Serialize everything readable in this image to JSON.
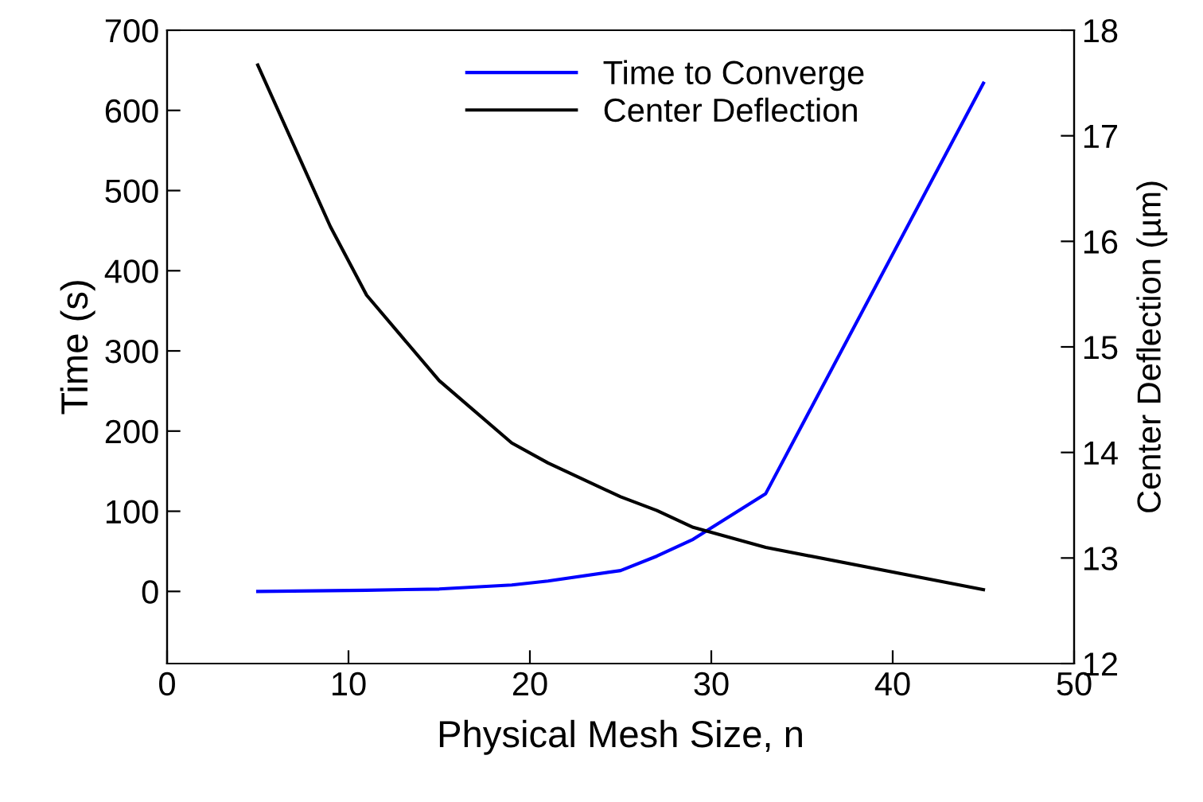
{
  "chart_data": {
    "type": "line",
    "xlabel": "Physical Mesh Size, n",
    "ylabel": "Time (s)",
    "y2label": "Center Deflection (µm)",
    "xlim": [
      0,
      50
    ],
    "xticks": [
      0,
      10,
      20,
      30,
      40,
      50
    ],
    "ylim": [
      -90,
      700
    ],
    "yticks": [
      0,
      100,
      200,
      300,
      400,
      500,
      600,
      700
    ],
    "y2lim": [
      12,
      18
    ],
    "y2ticks": [
      12,
      13,
      14,
      15,
      16,
      17,
      18
    ],
    "legend": "top",
    "grid": false,
    "marker": "none",
    "line_style": "solid",
    "series": [
      {
        "name": "Time to Converge",
        "color": "#0000ff",
        "x": [
          5,
          9,
          11,
          15,
          19,
          21,
          25,
          27,
          29,
          33,
          45
        ],
        "values": [
          0,
          1,
          1.5,
          3,
          8,
          13,
          26,
          44,
          65,
          122,
          634
        ]
      },
      {
        "name": "Center Deflection",
        "color": "#000000",
        "axis": "y2",
        "x": [
          5,
          9,
          11,
          15,
          19,
          21,
          25,
          27,
          29,
          33,
          45
        ],
        "values": [
          17.67,
          16.14,
          15.49,
          14.68,
          14.09,
          13.9,
          13.58,
          13.45,
          13.29,
          13.1,
          12.7
        ]
      }
    ]
  }
}
